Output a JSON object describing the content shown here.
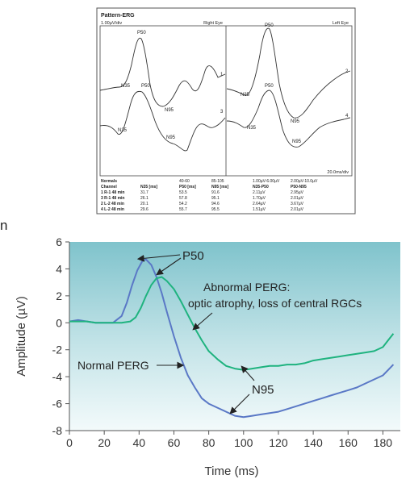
{
  "stray_text": "n",
  "chart_data": [
    {
      "type": "line",
      "title": "Pattern-ERG",
      "panels": [
        {
          "side_label": "Right Eye",
          "scale_label": "1.00µV/div",
          "trace_labels": [
            "1",
            "3"
          ],
          "peak_labels": {
            "P50_1": "P50",
            "N35_1": "N35",
            "N95_1": "N95",
            "P50_3": "P50",
            "N35_3": "N35",
            "N95_3": "N95"
          }
        },
        {
          "side_label": "Left Eye",
          "time_scale_label": "20.0ms/div",
          "trace_labels": [
            "2",
            "4"
          ],
          "peak_labels": {
            "P50_2": "P50",
            "N35_2": "N35",
            "N95_2": "N95",
            "P50_4": "P50",
            "N35_4": "N35",
            "N95_4": "N95"
          }
        }
      ],
      "table": {
        "normals_row": [
          "Normals",
          "",
          "40-60",
          "85-105",
          "1.00µV-6.00µV",
          "2.00µV-10.0µV"
        ],
        "header": [
          "Channel",
          "N35 [ms]",
          "P50 [ms]",
          "N95 [ms]",
          "N35-P50",
          "P50-N95"
        ],
        "rows": [
          [
            "1 R-1 48 min",
            "31.7",
            "53.5",
            "91.6",
            "2.11µV",
            "2.95µV"
          ],
          [
            "3 R-1 48 min",
            "26.1",
            "57.8",
            "95.1",
            "1.70µV",
            "2.01µV"
          ],
          [
            "2 L-2 48 min",
            "20.1",
            "54.2",
            "94.6",
            "2.64µV",
            "3.67µV"
          ],
          [
            "4 L-2 48 min",
            "29.6",
            "55.7",
            "95.5",
            "1.51µV",
            "2.01µV"
          ]
        ]
      }
    },
    {
      "type": "line",
      "xlabel": "Time (ms)",
      "ylabel": "Amplitude (µV)",
      "xlim": [
        0,
        190
      ],
      "ylim": [
        -8,
        6
      ],
      "x_ticks": [
        0,
        20,
        40,
        60,
        80,
        100,
        120,
        140,
        160,
        180
      ],
      "y_ticks": [
        -8,
        -6,
        -4,
        -2,
        0,
        2,
        4,
        6
      ],
      "grid": false,
      "colors": {
        "normal": "#5a78c6",
        "abnormal": "#1fb37f",
        "panel_top": "#7fc3cc",
        "panel_bottom": "#f3fafb"
      },
      "annotations": {
        "p50": "P50",
        "n95": "N95",
        "normal": "Normal PERG",
        "abnormal_line1": "Abnormal PERG:",
        "abnormal_line2": "optic atrophy, loss of central RGCs"
      },
      "series": [
        {
          "key": "normal",
          "x": [
            0,
            5,
            10,
            15,
            20,
            25,
            30,
            33,
            36,
            39,
            42,
            44,
            47,
            50,
            53,
            56,
            60,
            64,
            68,
            72,
            76,
            80,
            85,
            90,
            95,
            100,
            105,
            110,
            115,
            120,
            125,
            130,
            135,
            140,
            145,
            150,
            155,
            160,
            165,
            170,
            175,
            180,
            183,
            186
          ],
          "values": [
            0.1,
            0.2,
            0.1,
            0.0,
            0.0,
            0.0,
            0.5,
            1.5,
            2.8,
            3.9,
            4.6,
            4.7,
            4.3,
            3.4,
            2.2,
            0.8,
            -1.0,
            -2.6,
            -3.9,
            -4.8,
            -5.6,
            -6.0,
            -6.3,
            -6.6,
            -6.9,
            -7.0,
            -6.9,
            -6.8,
            -6.7,
            -6.6,
            -6.4,
            -6.2,
            -6.0,
            -5.8,
            -5.6,
            -5.4,
            -5.2,
            -5.0,
            -4.8,
            -4.5,
            -4.2,
            -3.9,
            -3.5,
            -3.1
          ]
        },
        {
          "key": "abnormal",
          "x": [
            0,
            5,
            10,
            15,
            20,
            25,
            30,
            35,
            38,
            41,
            44,
            47,
            50,
            53,
            56,
            60,
            64,
            68,
            72,
            76,
            80,
            85,
            90,
            95,
            100,
            105,
            110,
            115,
            120,
            125,
            130,
            135,
            140,
            145,
            150,
            155,
            160,
            165,
            170,
            175,
            180,
            183,
            186
          ],
          "values": [
            0.1,
            0.1,
            0.1,
            0.0,
            0.0,
            0.0,
            0.0,
            0.1,
            0.4,
            1.1,
            2.0,
            2.8,
            3.3,
            3.4,
            3.1,
            2.5,
            1.6,
            0.6,
            -0.4,
            -1.3,
            -2.1,
            -2.7,
            -3.2,
            -3.4,
            -3.5,
            -3.4,
            -3.3,
            -3.2,
            -3.2,
            -3.1,
            -3.1,
            -3.0,
            -2.8,
            -2.7,
            -2.6,
            -2.5,
            -2.4,
            -2.3,
            -2.2,
            -2.1,
            -1.8,
            -1.3,
            -0.8
          ]
        }
      ]
    }
  ]
}
